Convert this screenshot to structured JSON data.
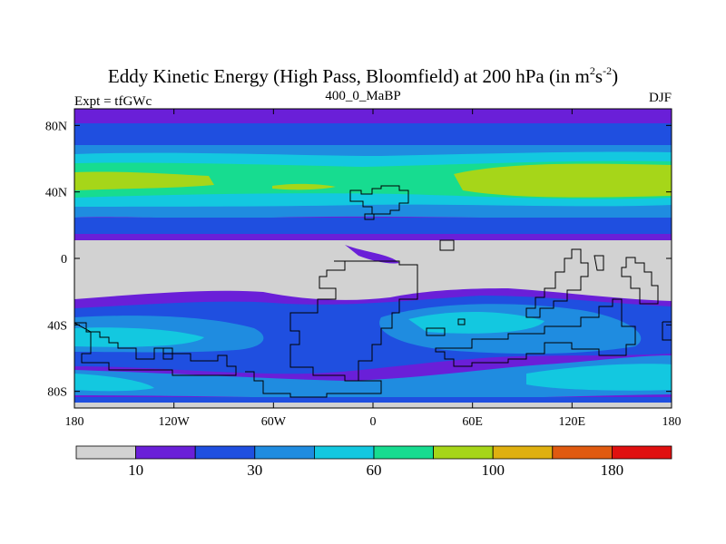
{
  "title": {
    "main": "Eddy Kinetic Energy (High Pass, Bloomfield) at 200 hPa (in m",
    "sup1": "2",
    "mid": "s",
    "sup2": "-2",
    "end": ")"
  },
  "left_label": "Expt = tfGWc",
  "center_label": "400_0_MaBP",
  "right_label": "DJF",
  "axes": {
    "x_ticks": [
      {
        "label": "180",
        "lon": -180
      },
      {
        "label": "120W",
        "lon": -120
      },
      {
        "label": "60W",
        "lon": -60
      },
      {
        "label": "0",
        "lon": 0
      },
      {
        "label": "60E",
        "lon": 60
      },
      {
        "label": "120E",
        "lon": 120
      },
      {
        "label": "180",
        "lon": 180
      }
    ],
    "y_ticks": [
      {
        "label": "80N",
        "lat": 80
      },
      {
        "label": "40N",
        "lat": 40
      },
      {
        "label": "0",
        "lat": 0
      },
      {
        "label": "40S",
        "lat": -40
      },
      {
        "label": "80S",
        "lat": -80
      }
    ],
    "lon_range": [
      -180,
      180
    ],
    "lat_range": [
      -90,
      90
    ]
  },
  "colorbar": {
    "colors": [
      "#d2d2d2",
      "#6a1fd8",
      "#1f4fe0",
      "#1f8ce0",
      "#13c8e0",
      "#17dc90",
      "#a6d619",
      "#dfb010",
      "#e05a10",
      "#e01010"
    ],
    "labels": [
      {
        "text": "10",
        "boundary": 1
      },
      {
        "text": "30",
        "boundary": 3
      },
      {
        "text": "60",
        "boundary": 5
      },
      {
        "text": "100",
        "boundary": 7
      },
      {
        "text": "180",
        "boundary": 9
      }
    ]
  },
  "colors": {
    "grey": "#d2d2d2",
    "purple": "#6a1fd8",
    "blue": "#1f4fe0",
    "midblue": "#1f8ce0",
    "cyan": "#13c8e0",
    "teal": "#17dc90",
    "green": "#a6d619"
  }
}
